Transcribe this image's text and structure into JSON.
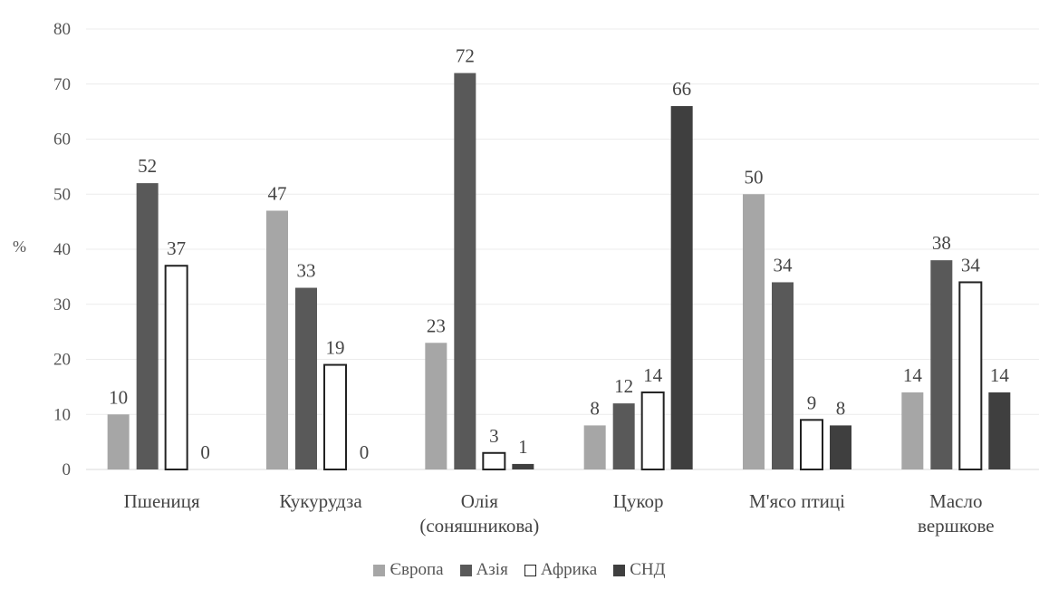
{
  "chart_data": {
    "type": "bar",
    "ylabel": "%",
    "ylim": [
      0,
      80
    ],
    "yticks": [
      0,
      10,
      20,
      30,
      40,
      50,
      60,
      70,
      80
    ],
    "categories": [
      [
        "Пшениця"
      ],
      [
        "Кукурудза"
      ],
      [
        "Олія",
        "(соняшникова)"
      ],
      [
        "Цукор"
      ],
      [
        "М'ясо птиці"
      ],
      [
        "Масло",
        "вершкове"
      ]
    ],
    "series": [
      {
        "name": "Європа",
        "color": "#a6a6a6",
        "values": [
          10,
          47,
          23,
          8,
          50,
          14
        ]
      },
      {
        "name": "Азія",
        "color": "#595959",
        "values": [
          52,
          33,
          72,
          12,
          34,
          38
        ]
      },
      {
        "name": "Африка",
        "color": "#ffffff",
        "values": [
          37,
          19,
          3,
          14,
          9,
          34
        ]
      },
      {
        "name": "СНД",
        "color": "#3f3f3f",
        "values": [
          0,
          0,
          1,
          66,
          8,
          14
        ]
      }
    ],
    "grid": true,
    "legend": "bottom"
  }
}
